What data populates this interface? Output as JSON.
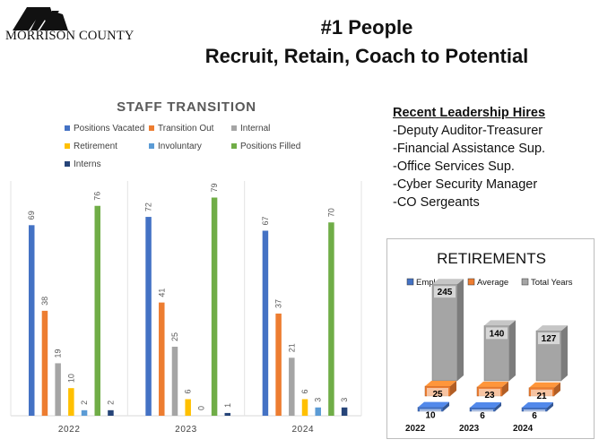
{
  "header": {
    "logo_text": "MORRISON COUNTY",
    "title_line1": "#1 People",
    "title_line2": "Recruit, Retain, Coach to Potential"
  },
  "leadership": {
    "heading": "Recent Leadership Hires",
    "items": [
      "-Deputy Auditor-Treasurer",
      "-Financial Assistance Sup.",
      "-Office Services Sup.",
      "-Cyber Security Manager",
      "-CO Sergeants"
    ]
  },
  "chart_data": [
    {
      "type": "bar",
      "title": "STAFF TRANSITION",
      "categories": [
        "2022",
        "2023",
        "2024"
      ],
      "series": [
        {
          "name": "Positions Vacated",
          "color": "#4472c4",
          "values": [
            69,
            72,
            67
          ]
        },
        {
          "name": "Transition Out",
          "color": "#ed7d31",
          "values": [
            38,
            41,
            37
          ]
        },
        {
          "name": "Internal",
          "color": "#a5a5a5",
          "values": [
            19,
            25,
            21
          ]
        },
        {
          "name": "Retirement",
          "color": "#ffc000",
          "values": [
            10,
            6,
            6
          ]
        },
        {
          "name": "Involuntary",
          "color": "#5b9bd5",
          "values": [
            2,
            0,
            3
          ]
        },
        {
          "name": "Positions Filled",
          "color": "#70ad47",
          "values": [
            76,
            79,
            70
          ]
        },
        {
          "name": "Interns",
          "color": "#264478",
          "values": [
            2,
            1,
            3
          ]
        }
      ],
      "ylim": [
        0,
        85
      ],
      "legend": "top",
      "grid": false,
      "data_labels": true
    },
    {
      "type": "bar",
      "title": "RETIREMENTS",
      "categories": [
        "2022",
        "2023",
        "2024"
      ],
      "series": [
        {
          "name": "Employees",
          "color": "#4472c4",
          "values": [
            10,
            6,
            6
          ]
        },
        {
          "name": "Average",
          "color": "#ed7d31",
          "values": [
            25,
            23,
            21
          ]
        },
        {
          "name": "Total Years",
          "color": "#a5a5a5",
          "values": [
            245,
            140,
            127
          ]
        }
      ],
      "legend": "top",
      "grid": false,
      "data_labels": true,
      "style": "3d"
    }
  ]
}
